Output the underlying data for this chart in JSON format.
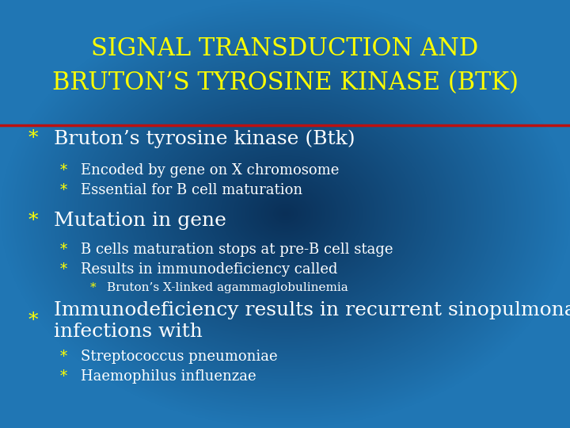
{
  "title_line1": "SIGNAL TRANSDUCTION AND",
  "title_line2": "BRUTON’S TYROSINE KINASE (BTK)",
  "title_color": "#ffff00",
  "title_fontsize": 22,
  "bg_color_outer": "#2076b4",
  "bg_color_inner": "#0a3058",
  "divider_color": "#bb1111",
  "text_color": "#ffffff",
  "bullet_color": "#ffff00",
  "content": [
    {
      "level": 0,
      "text": "Bruton’s tyrosine kinase (Btk)",
      "fontsize": 18
    },
    {
      "level": 1,
      "text": "Encoded by gene on X chromosome",
      "fontsize": 13
    },
    {
      "level": 1,
      "text": "Essential for B cell maturation",
      "fontsize": 13
    },
    {
      "level": 0,
      "text": "Mutation in gene",
      "fontsize": 18
    },
    {
      "level": 1,
      "text": "B cells maturation stops at pre-B cell stage",
      "fontsize": 13
    },
    {
      "level": 1,
      "text": "Results in immunodeficiency called",
      "fontsize": 13
    },
    {
      "level": 2,
      "text": "Bruton’s X-linked agammaglobulinemia",
      "fontsize": 11
    },
    {
      "level": 0,
      "text": "Immunodeficiency results in recurrent sinopulmonary\ninfections with",
      "fontsize": 18
    },
    {
      "level": 1,
      "text": "Streptococcus pneumoniae",
      "fontsize": 13
    },
    {
      "level": 1,
      "text": "Haemophilus influenzae",
      "fontsize": 13
    }
  ],
  "figsize": [
    7.2,
    5.4
  ],
  "dpi": 100
}
